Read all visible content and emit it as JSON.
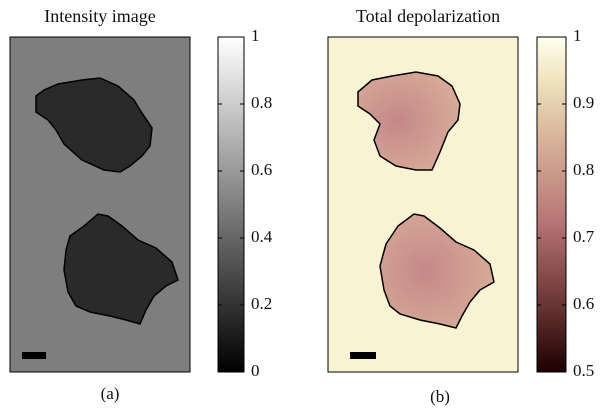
{
  "panels": [
    {
      "title": "Intensity image",
      "caption": "(a)",
      "colorbar": {
        "lim": [
          0,
          1
        ],
        "ticks": [
          0,
          0.2,
          0.4,
          0.6,
          0.8,
          1
        ]
      }
    },
    {
      "title": "Total depolarization",
      "caption": "(b)",
      "colorbar": {
        "lim": [
          0.5,
          1
        ],
        "ticks": [
          0.5,
          0.6,
          0.7,
          0.8,
          0.9,
          1
        ]
      }
    }
  ]
}
